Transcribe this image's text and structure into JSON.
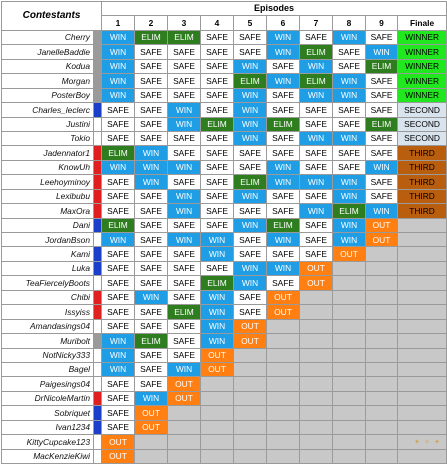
{
  "header": {
    "contestants_label": "Contestants",
    "episodes_label": "Episodes",
    "episode_numbers": [
      "1",
      "2",
      "3",
      "4",
      "5",
      "6",
      "7",
      "8",
      "9",
      "Finale"
    ]
  },
  "colors": {
    "SAFE": {
      "bg": "#ffffff",
      "fg": "#000000"
    },
    "WIN": {
      "bg": "#1f9ee6",
      "fg": "#ffffff"
    },
    "ELIM": {
      "bg": "#2e7d1f",
      "fg": "#ffffff"
    },
    "OUT": {
      "bg": "#ff7f13",
      "fg": "#ffffff"
    },
    "WINNER": {
      "bg": "#21e81e",
      "fg": "#000000"
    },
    "SECOND": {
      "bg": "#d8e3ee",
      "fg": "#000000"
    },
    "THIRD": {
      "bg": "#b85e0e",
      "fg": "#000000"
    },
    "EMPTY": {
      "bg": "#c8c8c8",
      "fg": "#000000"
    },
    "marker_gray": "#9a9a9a",
    "marker_red": "#e02020",
    "marker_blue": "#1c3fc9",
    "marker_none": "#ffffff"
  },
  "contestants": [
    {
      "name": "Cherry",
      "marker": "gray",
      "results": [
        "WIN",
        "ELIM",
        "ELIM",
        "SAFE",
        "SAFE",
        "WIN",
        "SAFE",
        "WIN",
        "SAFE",
        "WINNER"
      ]
    },
    {
      "name": "JanelleBaddie",
      "marker": "gray",
      "results": [
        "WIN",
        "SAFE",
        "SAFE",
        "SAFE",
        "SAFE",
        "WIN",
        "ELIM",
        "SAFE",
        "WIN",
        "WINNER"
      ]
    },
    {
      "name": "Kodua",
      "marker": "gray",
      "results": [
        "WIN",
        "SAFE",
        "SAFE",
        "SAFE",
        "WIN",
        "SAFE",
        "WIN",
        "SAFE",
        "ELIM",
        "WINNER"
      ]
    },
    {
      "name": "Morgan",
      "marker": "gray",
      "results": [
        "WIN",
        "SAFE",
        "SAFE",
        "SAFE",
        "ELIM",
        "WIN",
        "ELIM",
        "WIN",
        "SAFE",
        "WINNER"
      ]
    },
    {
      "name": "PosterBoy",
      "marker": "gray",
      "results": [
        "WIN",
        "SAFE",
        "SAFE",
        "SAFE",
        "WIN",
        "SAFE",
        "WIN",
        "WIN",
        "SAFE",
        "WINNER"
      ]
    },
    {
      "name": "Charles_leclerc",
      "marker": "blue",
      "results": [
        "SAFE",
        "SAFE",
        "WIN",
        "SAFE",
        "WIN",
        "SAFE",
        "SAFE",
        "SAFE",
        "SAFE",
        "SECOND"
      ]
    },
    {
      "name": "Justini",
      "marker": "none",
      "results": [
        "SAFE",
        "SAFE",
        "WIN",
        "ELIM",
        "WIN",
        "ELIM",
        "SAFE",
        "SAFE",
        "ELIM",
        "SECOND"
      ]
    },
    {
      "name": "Tokio",
      "marker": "none",
      "results": [
        "SAFE",
        "SAFE",
        "SAFE",
        "SAFE",
        "WIN",
        "SAFE",
        "WIN",
        "WIN",
        "SAFE",
        "SECOND"
      ]
    },
    {
      "name": "Jadennator1",
      "marker": "red",
      "results": [
        "ELIM",
        "WIN",
        "SAFE",
        "SAFE",
        "SAFE",
        "SAFE",
        "SAFE",
        "SAFE",
        "SAFE",
        "THIRD"
      ]
    },
    {
      "name": "KnowUh",
      "marker": "red",
      "results": [
        "WIN",
        "WIN",
        "WIN",
        "SAFE",
        "SAFE",
        "WIN",
        "SAFE",
        "SAFE",
        "WIN",
        "THIRD"
      ]
    },
    {
      "name": "Leehoyminoy",
      "marker": "red",
      "results": [
        "SAFE",
        "WIN",
        "SAFE",
        "SAFE",
        "ELIM",
        "WIN",
        "WIN",
        "WIN",
        "SAFE",
        "THIRD"
      ]
    },
    {
      "name": "Lexibubu",
      "marker": "red",
      "results": [
        "SAFE",
        "SAFE",
        "WIN",
        "SAFE",
        "WIN",
        "SAFE",
        "SAFE",
        "WIN",
        "SAFE",
        "THIRD"
      ]
    },
    {
      "name": "MaxOra",
      "marker": "red",
      "results": [
        "SAFE",
        "SAFE",
        "WIN",
        "SAFE",
        "SAFE",
        "SAFE",
        "WIN",
        "ELIM",
        "WIN",
        "THIRD"
      ]
    },
    {
      "name": "Dani",
      "marker": "blue",
      "results": [
        "ELIM",
        "SAFE",
        "SAFE",
        "SAFE",
        "WIN",
        "ELIM",
        "SAFE",
        "WIN",
        "OUT",
        "EMPTY"
      ]
    },
    {
      "name": "JordanBson",
      "marker": "none",
      "results": [
        "WIN",
        "SAFE",
        "WIN",
        "WIN",
        "SAFE",
        "WIN",
        "SAFE",
        "WIN",
        "OUT",
        "EMPTY"
      ]
    },
    {
      "name": "Kami",
      "marker": "blue",
      "results": [
        "SAFE",
        "SAFE",
        "SAFE",
        "WIN",
        "SAFE",
        "SAFE",
        "SAFE",
        "OUT",
        "EMPTY",
        "EMPTY"
      ]
    },
    {
      "name": "Luka",
      "marker": "blue",
      "results": [
        "SAFE",
        "SAFE",
        "SAFE",
        "SAFE",
        "WIN",
        "WIN",
        "OUT",
        "EMPTY",
        "EMPTY",
        "EMPTY"
      ]
    },
    {
      "name": "TeaFiercelyBoots",
      "marker": "none",
      "results": [
        "SAFE",
        "SAFE",
        "SAFE",
        "ELIM",
        "WIN",
        "SAFE",
        "OUT",
        "EMPTY",
        "EMPTY",
        "EMPTY"
      ]
    },
    {
      "name": "Chibi",
      "marker": "red",
      "results": [
        "SAFE",
        "WIN",
        "SAFE",
        "WIN",
        "SAFE",
        "OUT",
        "EMPTY",
        "EMPTY",
        "EMPTY",
        "EMPTY"
      ]
    },
    {
      "name": "Issyiss",
      "marker": "red",
      "results": [
        "SAFE",
        "SAFE",
        "ELIM",
        "WIN",
        "SAFE",
        "OUT",
        "EMPTY",
        "EMPTY",
        "EMPTY",
        "EMPTY"
      ]
    },
    {
      "name": "Amandasings04",
      "marker": "none",
      "results": [
        "SAFE",
        "SAFE",
        "SAFE",
        "WIN",
        "OUT",
        "EMPTY",
        "EMPTY",
        "EMPTY",
        "EMPTY",
        "EMPTY"
      ]
    },
    {
      "name": "Muribolt",
      "marker": "gray",
      "results": [
        "WIN",
        "ELIM",
        "SAFE",
        "WIN",
        "OUT",
        "EMPTY",
        "EMPTY",
        "EMPTY",
        "EMPTY",
        "EMPTY"
      ]
    },
    {
      "name": "NotNicky333",
      "marker": "none",
      "results": [
        "WIN",
        "SAFE",
        "SAFE",
        "OUT",
        "EMPTY",
        "EMPTY",
        "EMPTY",
        "EMPTY",
        "EMPTY",
        "EMPTY"
      ]
    },
    {
      "name": "Bagel",
      "marker": "none",
      "results": [
        "WIN",
        "SAFE",
        "WIN",
        "OUT",
        "EMPTY",
        "EMPTY",
        "EMPTY",
        "EMPTY",
        "EMPTY",
        "EMPTY"
      ]
    },
    {
      "name": "Paigesings04",
      "marker": "none",
      "results": [
        "SAFE",
        "SAFE",
        "OUT",
        "EMPTY",
        "EMPTY",
        "EMPTY",
        "EMPTY",
        "EMPTY",
        "EMPTY",
        "EMPTY"
      ]
    },
    {
      "name": "DrNicoleMartin",
      "marker": "red",
      "results": [
        "SAFE",
        "WIN",
        "OUT",
        "EMPTY",
        "EMPTY",
        "EMPTY",
        "EMPTY",
        "EMPTY",
        "EMPTY",
        "EMPTY"
      ]
    },
    {
      "name": "Sobriquet",
      "marker": "blue",
      "results": [
        "SAFE",
        "OUT",
        "EMPTY",
        "EMPTY",
        "EMPTY",
        "EMPTY",
        "EMPTY",
        "EMPTY",
        "EMPTY",
        "EMPTY"
      ]
    },
    {
      "name": "Ivan1234",
      "marker": "blue",
      "results": [
        "SAFE",
        "OUT",
        "EMPTY",
        "EMPTY",
        "EMPTY",
        "EMPTY",
        "EMPTY",
        "EMPTY",
        "EMPTY",
        "EMPTY"
      ]
    },
    {
      "name": "KittyCupcake123",
      "marker": "none",
      "results": [
        "OUT",
        "EMPTY",
        "EMPTY",
        "EMPTY",
        "EMPTY",
        "EMPTY",
        "EMPTY",
        "EMPTY",
        "EMPTY",
        "EMPTY"
      ]
    },
    {
      "name": "MacKenzieKiwi",
      "marker": "none",
      "results": [
        "OUT",
        "EMPTY",
        "EMPTY",
        "EMPTY",
        "EMPTY",
        "EMPTY",
        "EMPTY",
        "EMPTY",
        "EMPTY",
        "EMPTY"
      ]
    }
  ]
}
